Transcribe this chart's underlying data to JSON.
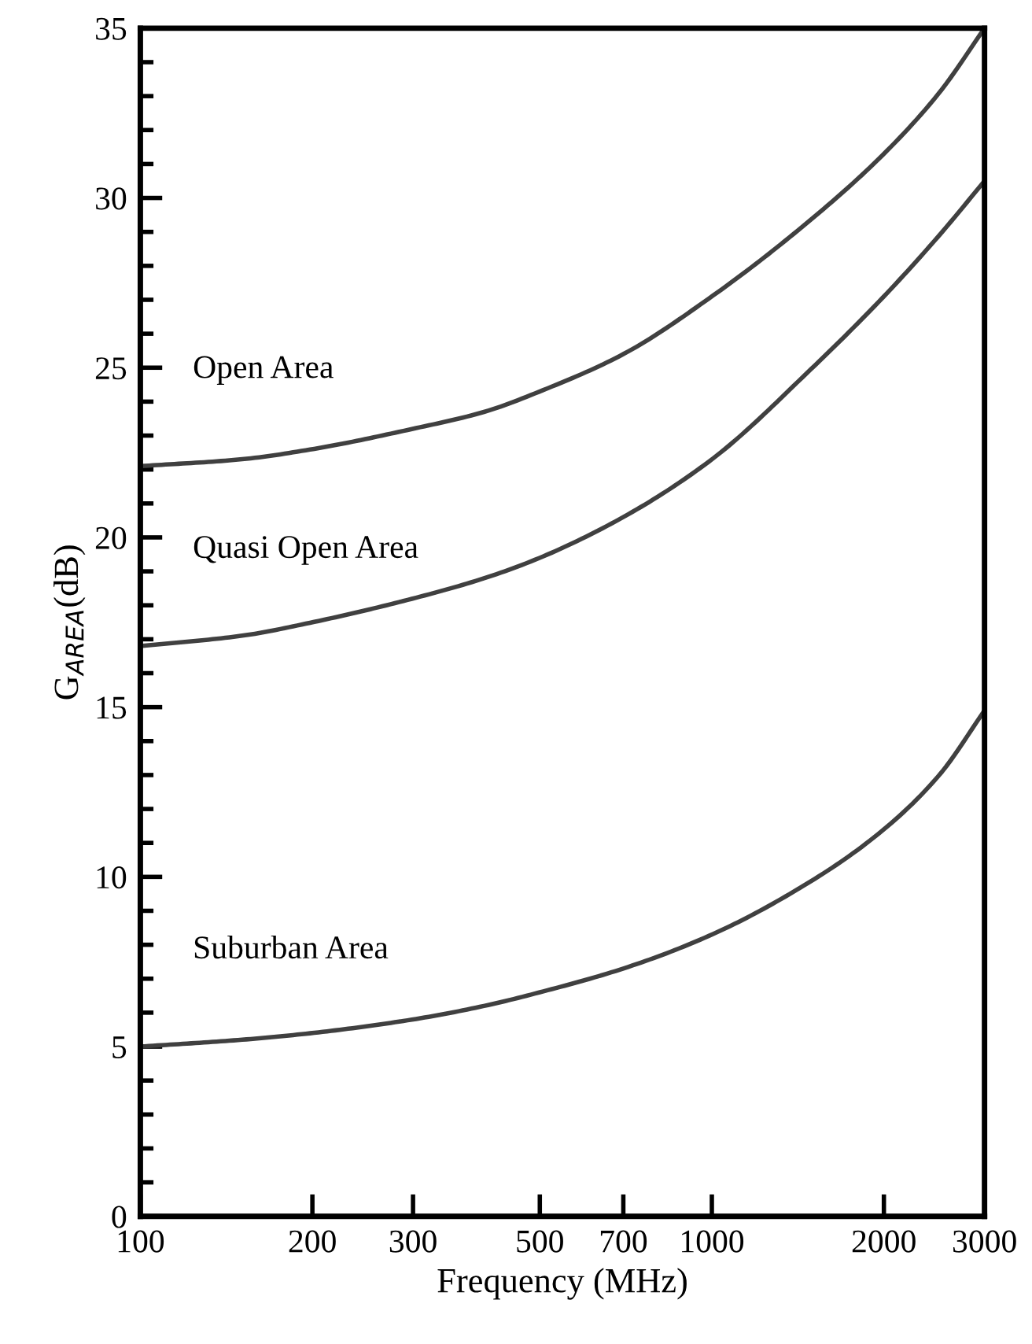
{
  "chart_data": {
    "type": "line",
    "xlabel": "Frequency (MHz)",
    "ylabel": "G$_{AREA}$(dB)",
    "log": "x",
    "xlim": [
      100,
      3000
    ],
    "xticks": [
      100,
      200,
      300,
      500,
      700,
      1000,
      2000,
      3000
    ],
    "ylim": [
      0,
      35
    ],
    "yticks": [
      0,
      {
        "value": 1,
        "label": null
      },
      {
        "value": 2,
        "label": null
      },
      {
        "value": 3,
        "label": null
      },
      {
        "value": 4,
        "label": null
      },
      5,
      {
        "value": 6,
        "label": null
      },
      {
        "value": 7,
        "label": null
      },
      {
        "value": 8,
        "label": null
      },
      {
        "value": 9,
        "label": null
      },
      10,
      {
        "value": 11,
        "label": null
      },
      {
        "value": 12,
        "label": null
      },
      {
        "value": 13,
        "label": null
      },
      {
        "value": 14,
        "label": null
      },
      15,
      {
        "value": 16,
        "label": null
      },
      {
        "value": 17,
        "label": null
      },
      {
        "value": 18,
        "label": null
      },
      {
        "value": 19,
        "label": null
      },
      20,
      {
        "value": 21,
        "label": null
      },
      {
        "value": 22,
        "label": null
      },
      {
        "value": 23,
        "label": null
      },
      {
        "value": 24,
        "label": null
      },
      25,
      {
        "value": 26,
        "label": null
      },
      {
        "value": 27,
        "label": null
      },
      {
        "value": 28,
        "label": null
      },
      {
        "value": 29,
        "label": null
      },
      30,
      {
        "value": 31,
        "label": null
      },
      {
        "value": 32,
        "label": null
      },
      {
        "value": 33,
        "label": null
      },
      {
        "value": 34,
        "label": null
      },
      35
    ],
    "grid": false,
    "legend": false,
    "marker": "none",
    "line_style": "solid",
    "x": [
      100,
      150,
      200,
      300,
      400,
      500,
      700,
      1000,
      1500,
      2000,
      2500,
      3000
    ],
    "series": [
      {
        "name": "Open Area",
        "color": "#404040",
        "values": [
          22.1,
          22.3,
          22.6,
          23.2,
          23.7,
          24.3,
          25.4,
          27.1,
          29.4,
          31.3,
          33.1,
          35.0
        ]
      },
      {
        "name": "Quasi Open Area",
        "color": "#404040",
        "values": [
          16.8,
          17.1,
          17.5,
          18.2,
          18.8,
          19.4,
          20.6,
          22.3,
          25.0,
          27.1,
          28.9,
          30.5
        ]
      },
      {
        "name": "Suburban Area",
        "color": "#404040",
        "values": [
          5.0,
          5.2,
          5.4,
          5.8,
          6.2,
          6.6,
          7.3,
          8.3,
          9.9,
          11.4,
          13.0,
          14.9
        ]
      }
    ]
  }
}
